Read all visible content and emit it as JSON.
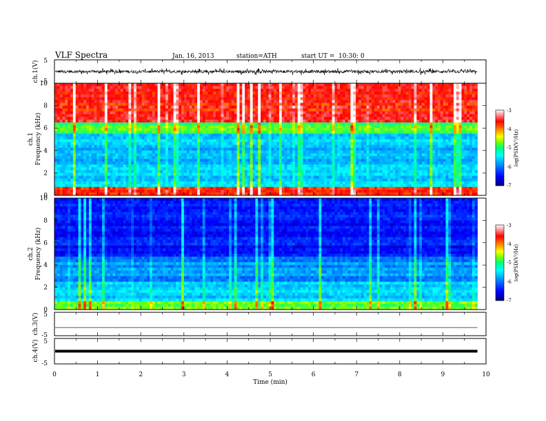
{
  "header": {
    "title": "VLF  Spectra",
    "date": "Jan. 16, 2013",
    "station": "station=ATH",
    "start_label": "start  UT  =",
    "start_time": "10:30: 0"
  },
  "colors": {
    "background": "#ffffff",
    "axis": "#000000",
    "trace": "#111111",
    "spectrogram_scale": [
      "#000080",
      "#0000ff",
      "#00a0ff",
      "#00ffff",
      "#00ff80",
      "#80ff00",
      "#ffff00",
      "#ff8000",
      "#ff0000",
      "#ffffff"
    ]
  },
  "chart_data": [
    {
      "type": "line",
      "id": "ch1-waveform",
      "ylabel": "ch.1(V)",
      "ylim": [
        -5,
        5
      ],
      "y_ticks": [
        "5",
        "-5"
      ],
      "xlim": [
        0,
        10
      ],
      "x_ticks": [
        "0",
        "1",
        "2",
        "3",
        "4",
        "5",
        "6",
        "7",
        "8",
        "9",
        "10"
      ],
      "data_end_min": 9.8,
      "amplitude_baseline_v": 0.2,
      "amplitude_envelope_v": 1.5,
      "grid": false
    },
    {
      "type": "heatmap",
      "id": "ch1-spectrogram",
      "ylabel_line1": "ch.1",
      "ylabel_line2": "Frequency  (kHz)",
      "xlim": [
        0,
        10
      ],
      "x_ticks": [
        "0",
        "1",
        "2",
        "3",
        "4",
        "5",
        "6",
        "7",
        "8",
        "9",
        "10"
      ],
      "ylim": [
        0,
        10
      ],
      "y_ticks": [
        "0",
        "2",
        "4",
        "6",
        "8",
        "10"
      ],
      "data_end_min": 9.8,
      "colorbar": {
        "label": "log(PSD(V²/Hz)",
        "range": [
          -7,
          -3
        ],
        "ticks": [
          "-3",
          "-4",
          "-5",
          "-6",
          "-7"
        ]
      },
      "grid": false
    },
    {
      "type": "heatmap",
      "id": "ch2-spectrogram",
      "ylabel_line1": "ch.2",
      "ylabel_line2": "Frequency  (kHz)",
      "xlim": [
        0,
        10
      ],
      "x_ticks": [
        "0",
        "1",
        "2",
        "3",
        "4",
        "5",
        "6",
        "7",
        "8",
        "9",
        "10"
      ],
      "ylim": [
        0,
        10
      ],
      "y_ticks": [
        "0",
        "2",
        "4",
        "6",
        "8",
        "10"
      ],
      "data_end_min": 9.8,
      "colorbar": {
        "label": "log(PSD(V²/Hz)",
        "range": [
          -7,
          -3
        ],
        "ticks": [
          "-3",
          "-4",
          "-5",
          "-6",
          "-7"
        ]
      },
      "grid": false
    },
    {
      "type": "line",
      "id": "ch3-waveform",
      "ylabel": "ch.3(V)",
      "ylim": [
        -5,
        5
      ],
      "y_ticks": [
        "5",
        "-5"
      ],
      "xlim": [
        0,
        10
      ],
      "x_ticks": [
        "0",
        "1",
        "2",
        "3",
        "4",
        "5",
        "6",
        "7",
        "8",
        "9",
        "10"
      ],
      "data_end_min": 9.8,
      "level_v": -1.5,
      "grid": false
    },
    {
      "type": "line",
      "id": "ch4-waveform",
      "ylabel": "ch.4(V)",
      "ylim": [
        -5,
        5
      ],
      "y_ticks": [
        "5",
        "-5"
      ],
      "xlim": [
        0,
        10
      ],
      "x_ticks": [
        "0",
        "1",
        "2",
        "3",
        "4",
        "5",
        "6",
        "7",
        "8",
        "9",
        "10"
      ],
      "xlabel": "Time  (min)",
      "data_end_min": 9.8,
      "level_v": 0,
      "grid": false
    }
  ]
}
